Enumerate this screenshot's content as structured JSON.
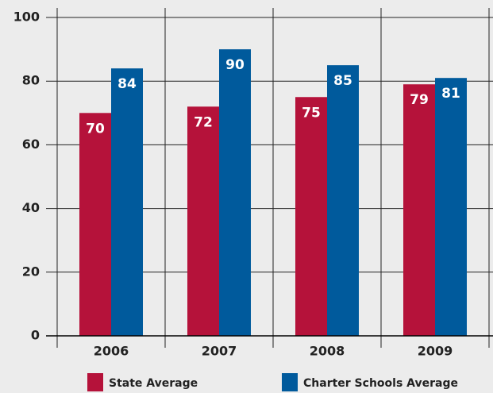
{
  "chart_data": {
    "type": "bar",
    "categories": [
      "2006",
      "2007",
      "2008",
      "2009"
    ],
    "series": [
      {
        "name": "State Average",
        "color": "#b5123a",
        "values": [
          70,
          72,
          75,
          79
        ]
      },
      {
        "name": "Charter Schools Average",
        "color": "#005a9c",
        "values": [
          84,
          90,
          85,
          81
        ]
      }
    ],
    "ylim": [
      0,
      100
    ],
    "yticks": [
      0,
      20,
      40,
      60,
      80,
      100
    ],
    "grid": true
  }
}
